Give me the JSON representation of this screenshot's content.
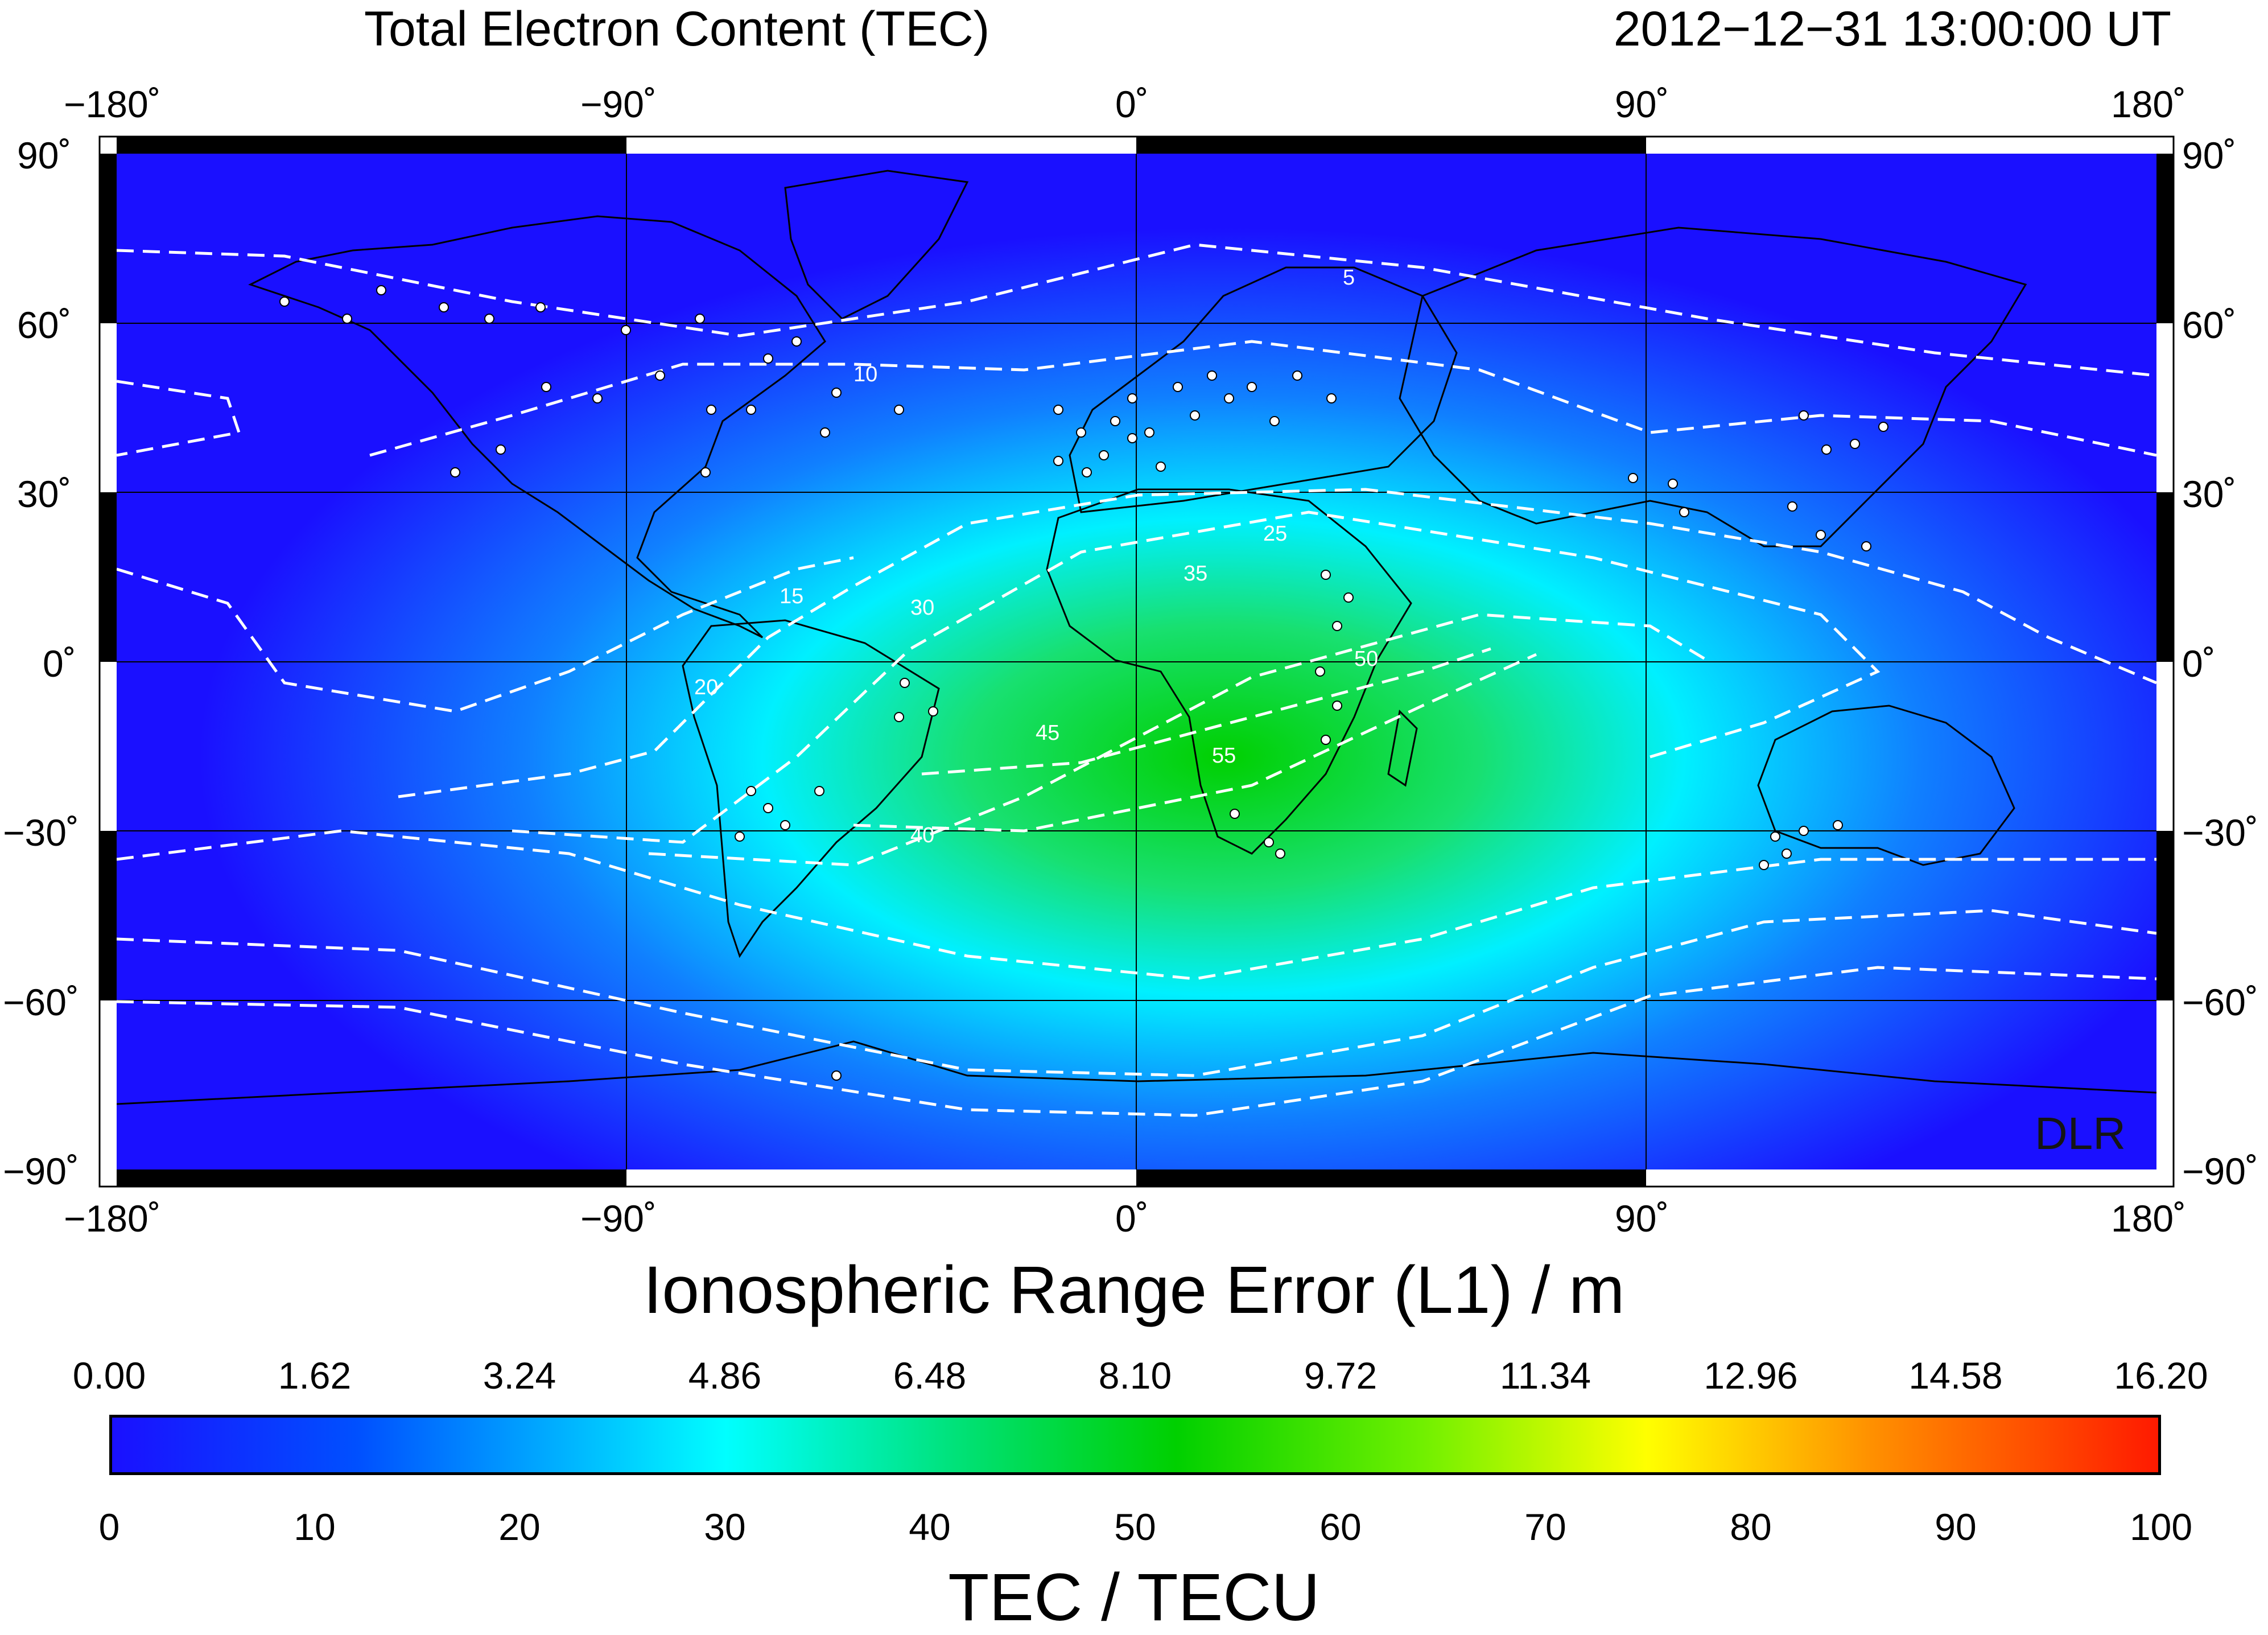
{
  "header": {
    "title": "Total Electron Content (TEC)",
    "timestamp": "2012−12−31  13:00:00 UT"
  },
  "map": {
    "lon_ticks": [
      "−180˚",
      "−90˚",
      "0˚",
      "90˚",
      "180˚"
    ],
    "lat_ticks": [
      "90˚",
      "60˚",
      "30˚",
      "0˚",
      "−30˚",
      "−60˚",
      "−90˚"
    ],
    "watermark": "DLR",
    "contour_labels": [
      "5",
      "10",
      "15",
      "20",
      "25",
      "30",
      "35",
      "40",
      "45",
      "50",
      "55"
    ],
    "colors": {
      "low": "#1a10ff",
      "mid_low": "#00ffff",
      "mid": "#00d000",
      "high_yellow": "#ffff00",
      "high_red": "#ff1a00",
      "contour": "#ffffff"
    }
  },
  "ionospheric_range_error": {
    "title": "Ionospheric Range Error (L1) / m",
    "labels": [
      "0.00",
      "1.62",
      "3.24",
      "4.86",
      "6.48",
      "8.10",
      "9.72",
      "11.34",
      "12.96",
      "14.58",
      "16.20"
    ]
  },
  "tec_scale": {
    "title": "TEC / TECU",
    "labels": [
      "0",
      "10",
      "20",
      "30",
      "40",
      "50",
      "60",
      "70",
      "80",
      "90",
      "100"
    ]
  }
}
